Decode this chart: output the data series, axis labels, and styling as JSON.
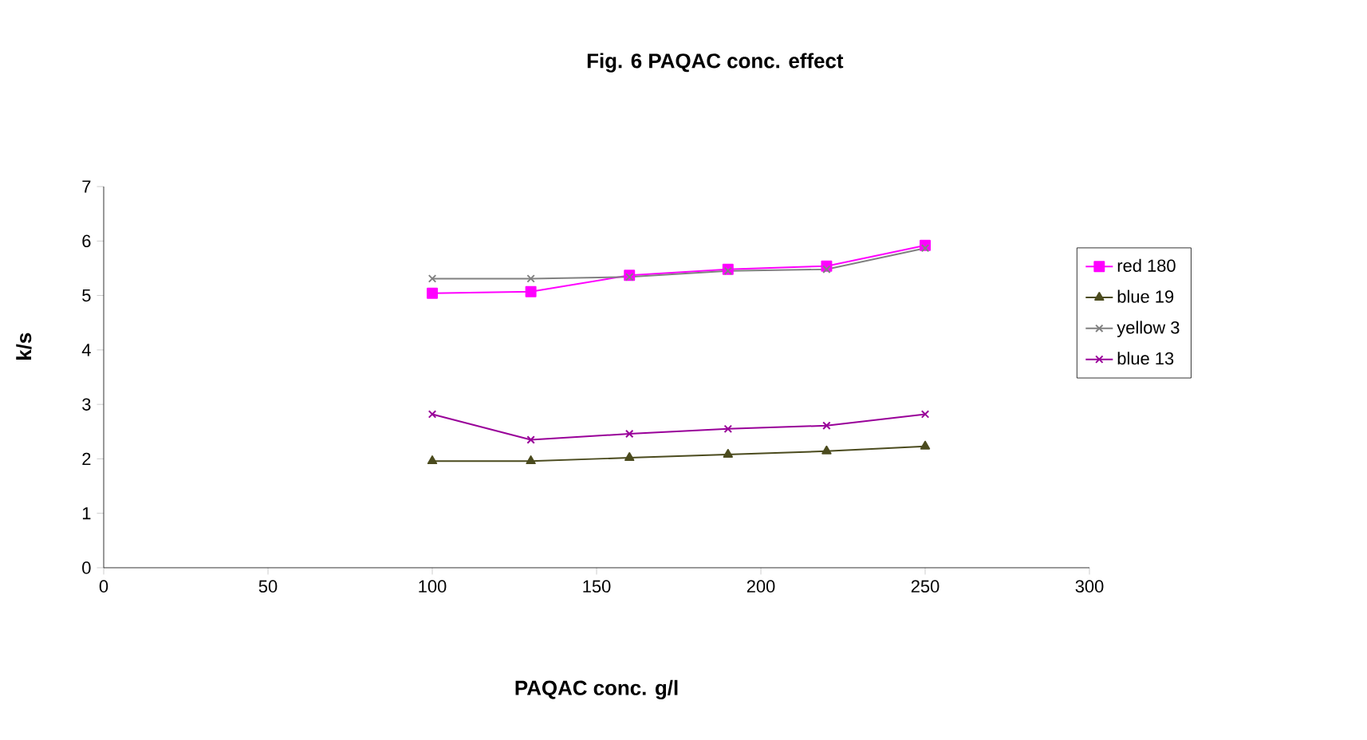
{
  "chart_data": {
    "type": "line",
    "title": "Fig. 6 PAQAC conc. effect",
    "xlabel": "PAQAC conc. g/l",
    "ylabel": "k/s",
    "x": [
      100,
      130,
      160,
      190,
      220,
      250
    ],
    "series": [
      {
        "name": "red 180",
        "color": "#ff00ff",
        "marker": "square",
        "values": [
          5.04,
          5.07,
          5.37,
          5.48,
          5.54,
          5.92
        ]
      },
      {
        "name": "blue 19",
        "color": "#4b4b1e",
        "marker": "triangle",
        "values": [
          1.96,
          1.96,
          2.02,
          2.08,
          2.14,
          2.23
        ]
      },
      {
        "name": "yellow 3",
        "color": "#808080",
        "marker": "cross",
        "values": [
          5.31,
          5.31,
          5.34,
          5.45,
          5.48,
          5.87
        ]
      },
      {
        "name": "blue 13",
        "color": "#990099",
        "marker": "cross",
        "values": [
          2.82,
          2.35,
          2.46,
          2.55,
          2.61,
          2.82
        ]
      }
    ],
    "xlim": [
      0,
      300
    ],
    "xticks": [
      0,
      50,
      100,
      150,
      200,
      250,
      300
    ],
    "ylim": [
      0,
      7
    ],
    "yticks": [
      0,
      1,
      2,
      3,
      4,
      5,
      6,
      7
    ],
    "grid": false,
    "legend": "right"
  }
}
